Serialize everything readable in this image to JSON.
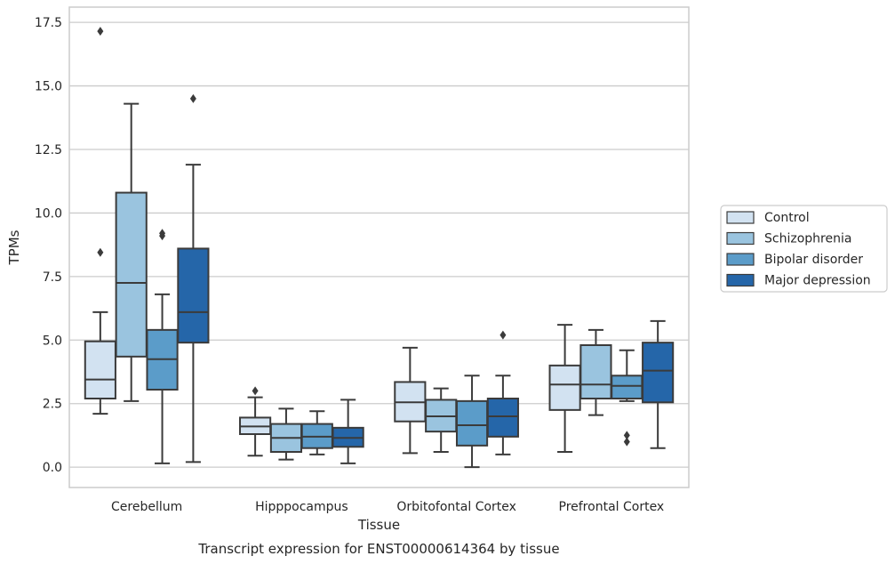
{
  "chart_data": {
    "type": "boxplot",
    "title": "Transcript expression for ENST00000614364 by tissue",
    "xlabel": "Tissue",
    "ylabel": "TPMs",
    "ylim": [
      -0.8,
      18.1
    ],
    "yticks": [
      "0.0",
      "2.5",
      "5.0",
      "7.5",
      "10.0",
      "12.5",
      "15.0",
      "17.5"
    ],
    "ytick_values": [
      0,
      2.5,
      5,
      7.5,
      10,
      12.5,
      15,
      17.5
    ],
    "grid": "horizontal",
    "legend_position": "right",
    "categories": [
      "Cerebellum",
      "Hipppocampus",
      "Orbitofontal Cortex",
      "Prefrontal Cortex"
    ],
    "series": [
      {
        "name": "Control",
        "color": "#d2e2f1",
        "boxes": [
          {
            "whislo": 2.1,
            "q1": 2.7,
            "med": 3.45,
            "q3": 4.95,
            "whishi": 6.1,
            "fliers": [
              8.45,
              17.15
            ]
          },
          {
            "whislo": 0.45,
            "q1": 1.3,
            "med": 1.6,
            "q3": 1.95,
            "whishi": 2.75,
            "fliers": [
              3.0
            ]
          },
          {
            "whislo": 0.55,
            "q1": 1.8,
            "med": 2.55,
            "q3": 3.35,
            "whishi": 4.7,
            "fliers": []
          },
          {
            "whislo": 0.6,
            "q1": 2.25,
            "med": 3.25,
            "q3": 4.0,
            "whishi": 5.6,
            "fliers": []
          }
        ]
      },
      {
        "name": "Schizophrenia",
        "color": "#9ac4df",
        "boxes": [
          {
            "whislo": 2.6,
            "q1": 4.35,
            "med": 7.25,
            "q3": 10.8,
            "whishi": 14.3,
            "fliers": []
          },
          {
            "whislo": 0.3,
            "q1": 0.6,
            "med": 1.15,
            "q3": 1.7,
            "whishi": 2.3,
            "fliers": []
          },
          {
            "whislo": 0.6,
            "q1": 1.4,
            "med": 2.0,
            "q3": 2.65,
            "whishi": 3.1,
            "fliers": []
          },
          {
            "whislo": 2.05,
            "q1": 2.7,
            "med": 3.25,
            "q3": 4.8,
            "whishi": 5.4,
            "fliers": []
          }
        ]
      },
      {
        "name": "Bipolar disorder",
        "color": "#5b9cc9",
        "boxes": [
          {
            "whislo": 0.15,
            "q1": 3.05,
            "med": 4.25,
            "q3": 5.4,
            "whishi": 6.8,
            "fliers": [
              9.1,
              9.2
            ]
          },
          {
            "whislo": 0.5,
            "q1": 0.75,
            "med": 1.2,
            "q3": 1.7,
            "whishi": 2.2,
            "fliers": []
          },
          {
            "whislo": 0.0,
            "q1": 0.85,
            "med": 1.65,
            "q3": 2.6,
            "whishi": 3.6,
            "fliers": []
          },
          {
            "whislo": 2.6,
            "q1": 2.7,
            "med": 3.2,
            "q3": 3.6,
            "whishi": 4.6,
            "fliers": [
              1.0,
              1.25
            ]
          }
        ]
      },
      {
        "name": "Major depression",
        "color": "#2566a9",
        "boxes": [
          {
            "whislo": 0.2,
            "q1": 4.9,
            "med": 6.1,
            "q3": 8.6,
            "whishi": 11.9,
            "fliers": [
              14.5
            ]
          },
          {
            "whislo": 0.15,
            "q1": 0.8,
            "med": 1.15,
            "q3": 1.55,
            "whishi": 2.65,
            "fliers": []
          },
          {
            "whislo": 0.5,
            "q1": 1.2,
            "med": 2.0,
            "q3": 2.7,
            "whishi": 3.6,
            "fliers": [
              5.2
            ]
          },
          {
            "whislo": 0.75,
            "q1": 2.55,
            "med": 3.8,
            "q3": 4.9,
            "whishi": 5.75,
            "fliers": []
          }
        ]
      }
    ]
  }
}
